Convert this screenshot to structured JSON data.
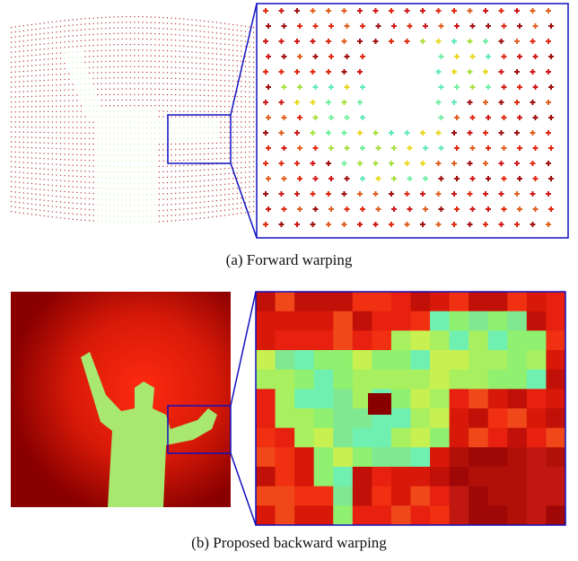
{
  "figure": {
    "subfigures": [
      {
        "caption": "(a) Forward warping"
      },
      {
        "caption": "(b) Proposed backward warping"
      }
    ]
  }
}
